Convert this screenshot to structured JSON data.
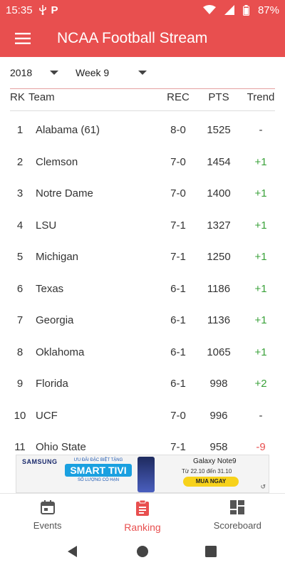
{
  "status_bar": {
    "time": "15:35",
    "battery": "87%",
    "icons": [
      "usb-icon",
      "p-app-icon",
      "wifi-icon",
      "signal-icon",
      "battery-icon"
    ]
  },
  "app_bar": {
    "title": "NCAA Football Stream",
    "menu_icon": "hamburger-menu-icon"
  },
  "filters": {
    "year": "2018",
    "week": "Week 9"
  },
  "table": {
    "headers": {
      "rank": "RK",
      "team": "Team",
      "record": "REC",
      "points": "PTS",
      "trend": "Trend"
    },
    "rows": [
      {
        "rank": "1",
        "team": "Alabama  (61)",
        "record": "8-0",
        "points": "1525",
        "trend": "-",
        "trend_dir": "flat"
      },
      {
        "rank": "2",
        "team": "Clemson",
        "record": "7-0",
        "points": "1454",
        "trend": "+1",
        "trend_dir": "up"
      },
      {
        "rank": "3",
        "team": "Notre Dame",
        "record": "7-0",
        "points": "1400",
        "trend": "+1",
        "trend_dir": "up"
      },
      {
        "rank": "4",
        "team": "LSU",
        "record": "7-1",
        "points": "1327",
        "trend": "+1",
        "trend_dir": "up"
      },
      {
        "rank": "5",
        "team": "Michigan",
        "record": "7-1",
        "points": "1250",
        "trend": "+1",
        "trend_dir": "up"
      },
      {
        "rank": "6",
        "team": "Texas",
        "record": "6-1",
        "points": "1186",
        "trend": "+1",
        "trend_dir": "up"
      },
      {
        "rank": "7",
        "team": "Georgia",
        "record": "6-1",
        "points": "1136",
        "trend": "+1",
        "trend_dir": "up"
      },
      {
        "rank": "8",
        "team": "Oklahoma",
        "record": "6-1",
        "points": "1065",
        "trend": "+1",
        "trend_dir": "up"
      },
      {
        "rank": "9",
        "team": "Florida",
        "record": "6-1",
        "points": "998",
        "trend": "+2",
        "trend_dir": "up"
      },
      {
        "rank": "10",
        "team": "UCF",
        "record": "7-0",
        "points": "996",
        "trend": "-",
        "trend_dir": "flat"
      },
      {
        "rank": "11",
        "team": "Ohio State",
        "record": "7-1",
        "points": "958",
        "trend": "-9",
        "trend_dir": "down"
      }
    ]
  },
  "ad": {
    "brand": "SAMSUNG",
    "promo_top": "ƯU ĐÃI ĐẶC BIỆT TẶNG",
    "promo_main": "SMART TIVI",
    "promo_bottom": "SỐ LƯỢNG CÓ HẠN",
    "model": "Galaxy Note9",
    "date_range": "Từ 22.10 đến 31.10",
    "cta": "MUA NGAY",
    "info": "↺"
  },
  "bottom_nav": {
    "items": [
      {
        "label": "Events",
        "icon": "calendar-icon"
      },
      {
        "label": "Ranking",
        "icon": "clipboard-icon"
      },
      {
        "label": "Scoreboard",
        "icon": "dashboard-icon"
      }
    ],
    "active_index": 1
  },
  "colors": {
    "primary": "#e84f4f",
    "trend_up": "#3aa23a",
    "trend_down": "#e84f4f"
  }
}
